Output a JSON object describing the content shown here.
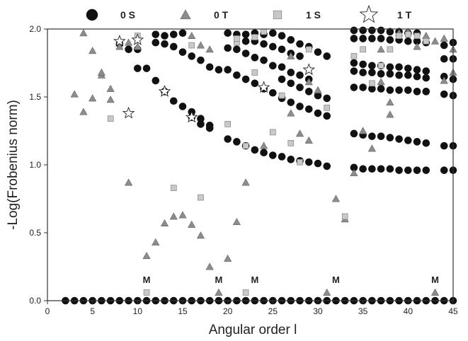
{
  "chart_data": {
    "type": "scatter",
    "title": "",
    "xlabel": "Angular order l",
    "ylabel": "-Log(Frobenius norm)",
    "xlim": [
      0,
      45
    ],
    "ylim": [
      0,
      2.0
    ],
    "xticks": [
      0,
      5,
      10,
      15,
      20,
      25,
      30,
      35,
      40,
      45
    ],
    "yticks": [
      0.0,
      0.5,
      1.0,
      1.5,
      2.0
    ],
    "xtick_labels": [
      "0",
      "5",
      "10",
      "15",
      "20",
      "25",
      "30",
      "35",
      "40",
      "45"
    ],
    "ytick_labels": [
      "0.0",
      "0.5",
      "1.0",
      "1.5",
      "2.0"
    ],
    "grid": false,
    "legend_position": "top",
    "series": [
      {
        "name": "0 S",
        "marker": "circle",
        "color": "#111111",
        "points": [
          [
            2,
            0
          ],
          [
            3,
            0
          ],
          [
            4,
            0
          ],
          [
            5,
            0
          ],
          [
            6,
            0
          ],
          [
            7,
            0
          ],
          [
            8,
            0
          ],
          [
            9,
            0
          ],
          [
            10,
            0
          ],
          [
            11,
            0
          ],
          [
            12,
            0
          ],
          [
            13,
            0
          ],
          [
            14,
            0
          ],
          [
            15,
            0
          ],
          [
            16,
            0
          ],
          [
            17,
            0
          ],
          [
            18,
            0
          ],
          [
            19,
            0
          ],
          [
            20,
            0
          ],
          [
            21,
            0
          ],
          [
            22,
            0
          ],
          [
            23,
            0
          ],
          [
            24,
            0
          ],
          [
            25,
            0
          ],
          [
            26,
            0
          ],
          [
            27,
            0
          ],
          [
            28,
            0
          ],
          [
            29,
            0
          ],
          [
            30,
            0
          ],
          [
            31,
            0
          ],
          [
            32,
            0
          ],
          [
            33,
            0
          ],
          [
            34,
            0
          ],
          [
            35,
            0
          ],
          [
            36,
            0
          ],
          [
            37,
            0
          ],
          [
            38,
            0
          ],
          [
            39,
            0
          ],
          [
            40,
            0
          ],
          [
            41,
            0
          ],
          [
            42,
            0
          ],
          [
            43,
            0
          ],
          [
            44,
            0
          ],
          [
            45,
            0
          ],
          [
            8,
            1.89
          ],
          [
            9,
            1.85
          ],
          [
            10,
            1.85
          ],
          [
            10,
            1.71
          ],
          [
            11,
            1.71
          ],
          [
            12,
            1.62
          ],
          [
            13,
            1.54
          ],
          [
            14,
            1.47
          ],
          [
            15,
            1.43
          ],
          [
            16,
            1.39
          ],
          [
            17,
            1.34
          ],
          [
            18,
            1.29
          ],
          [
            12,
            1.9
          ],
          [
            13,
            1.89
          ],
          [
            14,
            1.87
          ],
          [
            15,
            1.83
          ],
          [
            16,
            1.8
          ],
          [
            17,
            1.77
          ],
          [
            18,
            1.72
          ],
          [
            19,
            1.7
          ],
          [
            12,
            1.96
          ],
          [
            13,
            1.95
          ],
          [
            14,
            1.96
          ],
          [
            15,
            1.97
          ],
          [
            16,
            1.35
          ],
          [
            17,
            1.3
          ],
          [
            18,
            1.27
          ],
          [
            20,
            1.97
          ],
          [
            21,
            1.96
          ],
          [
            22,
            1.96
          ],
          [
            23,
            1.97
          ],
          [
            20,
            1.86
          ],
          [
            21,
            1.85
          ],
          [
            22,
            1.82
          ],
          [
            23,
            1.79
          ],
          [
            24,
            1.77
          ],
          [
            25,
            1.73
          ],
          [
            26,
            1.72
          ],
          [
            27,
            1.68
          ],
          [
            28,
            1.66
          ],
          [
            29,
            1.63
          ],
          [
            20,
            1.7
          ],
          [
            21,
            1.66
          ],
          [
            22,
            1.63
          ],
          [
            23,
            1.6
          ],
          [
            24,
            1.56
          ],
          [
            25,
            1.53
          ],
          [
            26,
            1.49
          ],
          [
            27,
            1.46
          ],
          [
            28,
            1.43
          ],
          [
            29,
            1.41
          ],
          [
            30,
            1.38
          ],
          [
            31,
            1.36
          ],
          [
            20,
            1.19
          ],
          [
            21,
            1.17
          ],
          [
            22,
            1.14
          ],
          [
            23,
            1.11
          ],
          [
            24,
            1.09
          ],
          [
            25,
            1.07
          ],
          [
            26,
            1.06
          ],
          [
            27,
            1.04
          ],
          [
            28,
            1.03
          ],
          [
            29,
            1.02
          ],
          [
            30,
            1.01
          ],
          [
            31,
            0.99
          ],
          [
            22,
            1.91
          ],
          [
            23,
            1.91
          ],
          [
            24,
            1.89
          ],
          [
            25,
            1.87
          ],
          [
            26,
            1.85
          ],
          [
            27,
            1.82
          ],
          [
            28,
            1.8
          ],
          [
            24,
            1.96
          ],
          [
            25,
            1.97
          ],
          [
            26,
            1.95
          ],
          [
            27,
            1.92
          ],
          [
            28,
            1.89
          ],
          [
            29,
            1.87
          ],
          [
            30,
            1.83
          ],
          [
            31,
            1.8
          ],
          [
            26,
            1.63
          ],
          [
            27,
            1.6
          ],
          [
            28,
            1.57
          ],
          [
            29,
            1.54
          ],
          [
            30,
            1.51
          ],
          [
            31,
            1.49
          ],
          [
            34,
            1.99
          ],
          [
            35,
            1.99
          ],
          [
            36,
            1.99
          ],
          [
            37,
            1.99
          ],
          [
            38,
            1.98
          ],
          [
            39,
            1.98
          ],
          [
            40,
            1.97
          ],
          [
            41,
            1.97
          ],
          [
            34,
            1.93
          ],
          [
            35,
            1.93
          ],
          [
            36,
            1.93
          ],
          [
            37,
            1.93
          ],
          [
            38,
            1.92
          ],
          [
            39,
            1.92
          ],
          [
            40,
            1.91
          ],
          [
            41,
            1.91
          ],
          [
            42,
            1.9
          ],
          [
            44,
            1.88
          ],
          [
            45,
            1.9
          ],
          [
            34,
            1.75
          ],
          [
            35,
            1.74
          ],
          [
            36,
            1.73
          ],
          [
            37,
            1.73
          ],
          [
            38,
            1.72
          ],
          [
            39,
            1.72
          ],
          [
            40,
            1.71
          ],
          [
            41,
            1.7
          ],
          [
            42,
            1.69
          ],
          [
            44,
            1.65
          ],
          [
            45,
            1.63
          ],
          [
            34,
            1.69
          ],
          [
            35,
            1.68
          ],
          [
            36,
            1.68
          ],
          [
            37,
            1.67
          ],
          [
            38,
            1.67
          ],
          [
            39,
            1.66
          ],
          [
            40,
            1.66
          ],
          [
            41,
            1.65
          ],
          [
            42,
            1.64
          ],
          [
            34,
            1.57
          ],
          [
            35,
            1.57
          ],
          [
            36,
            1.56
          ],
          [
            37,
            1.56
          ],
          [
            38,
            1.55
          ],
          [
            39,
            1.55
          ],
          [
            40,
            1.55
          ],
          [
            41,
            1.54
          ],
          [
            42,
            1.54
          ],
          [
            44,
            1.52
          ],
          [
            45,
            1.51
          ],
          [
            34,
            1.23
          ],
          [
            35,
            1.22
          ],
          [
            36,
            1.21
          ],
          [
            37,
            1.21
          ],
          [
            38,
            1.2
          ],
          [
            39,
            1.19
          ],
          [
            40,
            1.18
          ],
          [
            41,
            1.17
          ],
          [
            42,
            1.16
          ],
          [
            44,
            1.14
          ],
          [
            45,
            1.14
          ],
          [
            34,
            0.98
          ],
          [
            35,
            0.97
          ],
          [
            36,
            0.97
          ],
          [
            37,
            0.97
          ],
          [
            38,
            0.97
          ],
          [
            39,
            0.96
          ],
          [
            40,
            0.96
          ],
          [
            41,
            0.96
          ],
          [
            42,
            0.96
          ],
          [
            44,
            0.96
          ],
          [
            45,
            0.96
          ],
          [
            44,
            1.78
          ],
          [
            45,
            1.78
          ]
        ]
      },
      {
        "name": "0 T",
        "marker": "triangle",
        "color": "#8c8c8c",
        "points": [
          [
            3,
            1.52
          ],
          [
            4,
            1.97
          ],
          [
            4,
            1.39
          ],
          [
            5,
            1.84
          ],
          [
            5,
            1.49
          ],
          [
            6,
            1.66
          ],
          [
            6,
            1.68
          ],
          [
            7,
            1.56
          ],
          [
            7,
            1.48
          ],
          [
            8,
            1.87
          ],
          [
            9,
            0.87
          ],
          [
            9,
            1.9
          ],
          [
            10,
            1.87
          ],
          [
            11,
            0.33
          ],
          [
            12,
            0.43
          ],
          [
            13,
            0.57
          ],
          [
            14,
            0.62
          ],
          [
            15,
            0.63
          ],
          [
            16,
            0.56
          ],
          [
            17,
            0.48
          ],
          [
            18,
            0.25
          ],
          [
            20,
            0.31
          ],
          [
            21,
            0.58
          ],
          [
            22,
            0.87
          ],
          [
            24,
            1.14
          ],
          [
            27,
            1.38
          ],
          [
            27,
            1.8
          ],
          [
            28,
            1.23
          ],
          [
            29,
            1.18
          ],
          [
            30,
            1.55
          ],
          [
            32,
            0.75
          ],
          [
            33,
            0.6
          ],
          [
            34,
            0.94
          ],
          [
            35,
            1.25
          ],
          [
            36,
            1.12
          ],
          [
            37,
            1.61
          ],
          [
            37,
            1.85
          ],
          [
            38,
            1.46
          ],
          [
            38,
            1.37
          ],
          [
            39,
            1.97
          ],
          [
            40,
            1.98
          ],
          [
            41,
            1.87
          ],
          [
            42,
            1.95
          ],
          [
            43,
            1.91
          ],
          [
            44,
            1.93
          ],
          [
            45,
            1.85
          ],
          [
            16,
            1.95
          ],
          [
            17,
            1.88
          ],
          [
            18,
            1.85
          ],
          [
            19,
            0.06
          ],
          [
            31,
            0.06
          ],
          [
            43,
            0.06
          ],
          [
            44,
            1.62
          ],
          [
            45,
            1.68
          ],
          [
            29,
            1.61
          ]
        ]
      },
      {
        "name": "1 S",
        "marker": "square",
        "color": "#c8c8c8",
        "points": [
          [
            7,
            1.34
          ],
          [
            10,
            1.95
          ],
          [
            11,
            0.06
          ],
          [
            14,
            0.83
          ],
          [
            16,
            1.88
          ],
          [
            17,
            0.76
          ],
          [
            20,
            1.3
          ],
          [
            21,
            1.9
          ],
          [
            22,
            1.14
          ],
          [
            22,
            0.06
          ],
          [
            23,
            1.68
          ],
          [
            24,
            1.98
          ],
          [
            25,
            1.24
          ],
          [
            26,
            1.51
          ],
          [
            27,
            1.16
          ],
          [
            28,
            1.02
          ],
          [
            29,
            1.85
          ],
          [
            31,
            1.42
          ],
          [
            33,
            0.62
          ],
          [
            34,
            1.8
          ],
          [
            35,
            1.85
          ],
          [
            36,
            1.6
          ],
          [
            37,
            1.73
          ],
          [
            38,
            1.85
          ],
          [
            39,
            1.95
          ],
          [
            40,
            1.96
          ],
          [
            41,
            1.95
          ],
          [
            42,
            1.91
          ],
          [
            21,
            1.93
          ],
          [
            23,
            1.94
          ]
        ]
      },
      {
        "name": "1 T",
        "marker": "star",
        "color": "#ffffff",
        "points": [
          [
            8,
            1.91
          ],
          [
            9,
            1.38
          ],
          [
            10,
            1.92
          ],
          [
            13,
            1.54
          ],
          [
            16,
            1.35
          ],
          [
            24,
            1.57
          ],
          [
            29,
            1.7
          ]
        ]
      }
    ],
    "annotations": [
      {
        "text": "M",
        "x": 11,
        "y": 0.13
      },
      {
        "text": "M",
        "x": 19,
        "y": 0.13
      },
      {
        "text": "M",
        "x": 23,
        "y": 0.13
      },
      {
        "text": "M",
        "x": 32,
        "y": 0.13
      },
      {
        "text": "M",
        "x": 43,
        "y": 0.13
      }
    ]
  }
}
